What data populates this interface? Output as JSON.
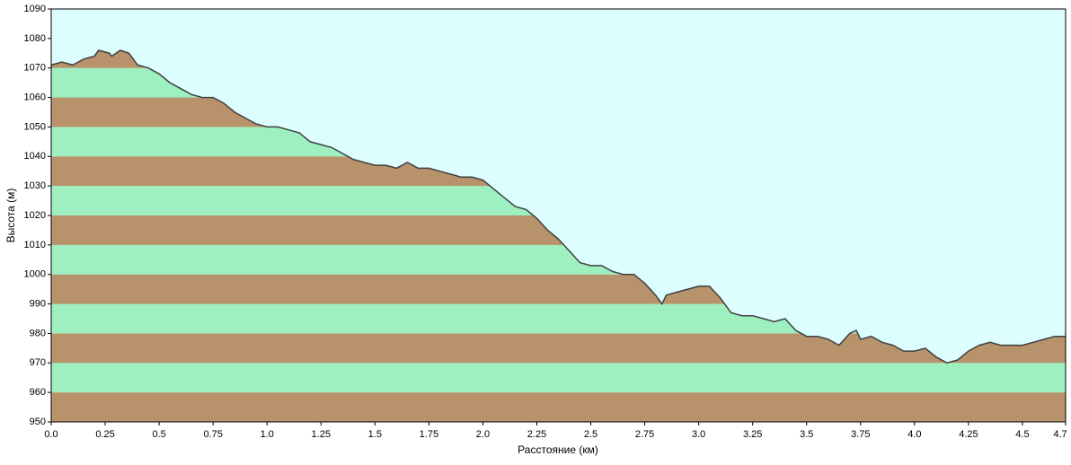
{
  "chart_data": {
    "type": "area",
    "x_label": "Расстояние  (км)",
    "y_label": "Высота (м)",
    "x": [
      0,
      0.05,
      0.1,
      0.15,
      0.2,
      0.22,
      0.27,
      0.28,
      0.32,
      0.36,
      0.4,
      0.45,
      0.5,
      0.55,
      0.6,
      0.65,
      0.7,
      0.75,
      0.8,
      0.85,
      0.9,
      0.95,
      1.0,
      1.05,
      1.1,
      1.15,
      1.2,
      1.25,
      1.3,
      1.35,
      1.4,
      1.45,
      1.5,
      1.55,
      1.6,
      1.65,
      1.7,
      1.75,
      1.8,
      1.85,
      1.9,
      1.95,
      2.0,
      2.05,
      2.1,
      2.15,
      2.2,
      2.25,
      2.3,
      2.35,
      2.4,
      2.45,
      2.5,
      2.55,
      2.6,
      2.65,
      2.7,
      2.75,
      2.8,
      2.83,
      2.85,
      2.9,
      2.95,
      3.0,
      3.05,
      3.1,
      3.15,
      3.2,
      3.25,
      3.3,
      3.35,
      3.4,
      3.45,
      3.5,
      3.55,
      3.6,
      3.65,
      3.7,
      3.73,
      3.75,
      3.8,
      3.85,
      3.9,
      3.95,
      4.0,
      4.05,
      4.1,
      4.15,
      4.2,
      4.25,
      4.3,
      4.35,
      4.4,
      4.45,
      4.5,
      4.55,
      4.6,
      4.65,
      4.7
    ],
    "values": [
      1071,
      1072,
      1071,
      1073,
      1074,
      1076,
      1075,
      1074,
      1076,
      1075,
      1071,
      1070,
      1068,
      1065,
      1063,
      1061,
      1060,
      1060,
      1058,
      1055,
      1053,
      1051,
      1050,
      1050,
      1049,
      1048,
      1045,
      1044,
      1043,
      1041,
      1039,
      1038,
      1037,
      1037,
      1036,
      1038,
      1036,
      1036,
      1035,
      1034,
      1033,
      1033,
      1032,
      1029,
      1026,
      1023,
      1022,
      1019,
      1015,
      1012,
      1008,
      1004,
      1003,
      1003,
      1001,
      1000,
      1000,
      997,
      993,
      990,
      993,
      994,
      995,
      996,
      996,
      992,
      987,
      986,
      986,
      985,
      984,
      985,
      981,
      979,
      979,
      978,
      976,
      980,
      981,
      978,
      979,
      977,
      976,
      974,
      974,
      975,
      972,
      970,
      971,
      974,
      976,
      977,
      976,
      976,
      976,
      977,
      978,
      979,
      979
    ],
    "line_color": "#404040",
    "sky_color": "#dcfefe",
    "band_colors": [
      "#b8926a",
      "#9ef0c0"
    ],
    "xlim": [
      0,
      4.7
    ],
    "ylim": [
      950,
      1090
    ],
    "xticks": [
      {
        "value": 0,
        "label": "0.0"
      },
      0.25,
      0.5,
      0.75,
      {
        "value": 1,
        "label": "1.0"
      },
      1.25,
      1.5,
      1.75,
      {
        "value": 2,
        "label": "2.0"
      },
      2.25,
      2.5,
      2.75,
      {
        "value": 3,
        "label": "3.0"
      },
      3.25,
      3.5,
      3.75,
      {
        "value": 4,
        "label": "4.0"
      },
      4.25,
      4.5,
      4.7
    ],
    "yticks": [
      950,
      960,
      970,
      980,
      990,
      1000,
      1010,
      1020,
      1030,
      1040,
      1050,
      1060,
      1070,
      1080,
      1090
    ]
  }
}
